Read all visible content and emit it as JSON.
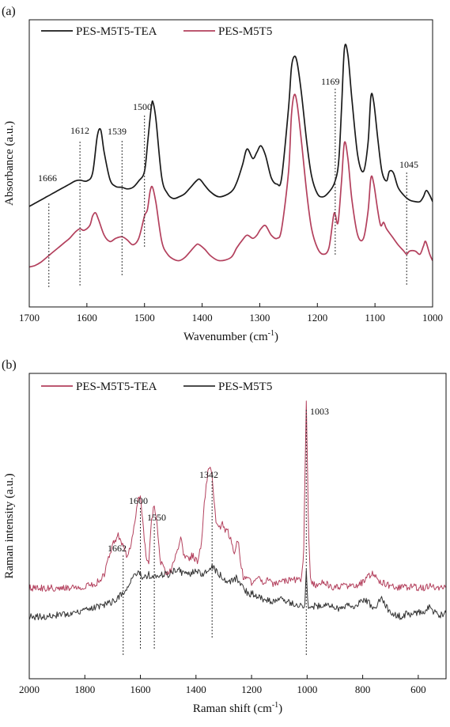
{
  "chart_data": [
    {
      "panel": "(a)",
      "type": "line",
      "xlabel": "Wavenumber (cm",
      "xlabel_sup": "-1",
      "xlabel_end": ")",
      "ylabel": "Absorbance (a.u.)",
      "xlim": [
        1700,
        1000
      ],
      "x_reversed": true,
      "xticks": [
        1700,
        1600,
        1500,
        1400,
        1300,
        1200,
        1100,
        1000
      ],
      "y_ticks_shown": false,
      "legend_position": "top-left",
      "colors": {
        "PES-M5T5-TEA": "#1a1a1a",
        "PES-M5T5": "#b3405d"
      },
      "series": [
        {
          "name": "PES-M5T5-TEA",
          "color": "#1a1a1a",
          "x": [
            1700,
            1690,
            1680,
            1670,
            1660,
            1650,
            1640,
            1630,
            1620,
            1612,
            1600,
            1590,
            1582,
            1576,
            1570,
            1560,
            1550,
            1539,
            1530,
            1520,
            1510,
            1500,
            1494,
            1488,
            1485,
            1480,
            1470,
            1460,
            1450,
            1440,
            1430,
            1420,
            1410,
            1404,
            1395,
            1385,
            1370,
            1350,
            1340,
            1330,
            1322,
            1312,
            1305,
            1298,
            1290,
            1280,
            1270,
            1262,
            1250,
            1245,
            1240,
            1235,
            1228,
            1218,
            1210,
            1200,
            1190,
            1180,
            1170,
            1163,
            1158,
            1153,
            1147,
            1140,
            1130,
            1120,
            1112,
            1107,
            1102,
            1095,
            1088,
            1080,
            1075,
            1068,
            1060,
            1050,
            1040,
            1030,
            1022,
            1016,
            1011,
            1005,
            1000
          ],
          "y": [
            0.08,
            0.1,
            0.12,
            0.14,
            0.16,
            0.18,
            0.2,
            0.22,
            0.24,
            0.245,
            0.24,
            0.29,
            0.52,
            0.56,
            0.42,
            0.25,
            0.205,
            0.2,
            0.19,
            0.2,
            0.24,
            0.3,
            0.5,
            0.71,
            0.73,
            0.62,
            0.26,
            0.16,
            0.13,
            0.14,
            0.16,
            0.2,
            0.24,
            0.25,
            0.21,
            0.17,
            0.14,
            0.17,
            0.23,
            0.34,
            0.44,
            0.38,
            0.42,
            0.46,
            0.4,
            0.26,
            0.22,
            0.26,
            0.7,
            0.95,
            1.02,
            0.98,
            0.8,
            0.47,
            0.27,
            0.16,
            0.14,
            0.17,
            0.23,
            0.36,
            0.7,
            1.07,
            1.03,
            0.75,
            0.4,
            0.3,
            0.48,
            0.77,
            0.73,
            0.5,
            0.3,
            0.24,
            0.3,
            0.29,
            0.2,
            0.15,
            0.12,
            0.11,
            0.11,
            0.14,
            0.18,
            0.15,
            0.11
          ]
        },
        {
          "name": "PES-M5T5",
          "color": "#b3405d",
          "x": [
            1700,
            1690,
            1680,
            1670,
            1660,
            1650,
            1640,
            1630,
            1620,
            1612,
            1605,
            1595,
            1590,
            1585,
            1580,
            1570,
            1560,
            1550,
            1539,
            1530,
            1520,
            1510,
            1500,
            1495,
            1490,
            1486,
            1480,
            1470,
            1460,
            1450,
            1440,
            1430,
            1420,
            1410,
            1405,
            1395,
            1385,
            1370,
            1350,
            1340,
            1330,
            1322,
            1312,
            1305,
            1298,
            1290,
            1280,
            1270,
            1262,
            1250,
            1245,
            1240,
            1235,
            1228,
            1218,
            1210,
            1200,
            1190,
            1180,
            1172,
            1169,
            1164,
            1158,
            1153,
            1147,
            1140,
            1130,
            1120,
            1112,
            1107,
            1102,
            1095,
            1090,
            1085,
            1080,
            1070,
            1060,
            1050,
            1045,
            1040,
            1030,
            1022,
            1016,
            1012,
            1005,
            1000
          ],
          "y": [
            -0.3,
            -0.29,
            -0.27,
            -0.24,
            -0.21,
            -0.18,
            -0.15,
            -0.12,
            -0.08,
            -0.06,
            -0.07,
            -0.04,
            0.02,
            0.04,
            0.0,
            -0.1,
            -0.14,
            -0.12,
            -0.11,
            -0.13,
            -0.16,
            -0.12,
            0.02,
            0.06,
            0.18,
            0.2,
            0.1,
            -0.14,
            -0.22,
            -0.25,
            -0.26,
            -0.24,
            -0.2,
            -0.16,
            -0.16,
            -0.19,
            -0.23,
            -0.26,
            -0.24,
            -0.18,
            -0.13,
            -0.1,
            -0.12,
            -0.1,
            -0.06,
            -0.04,
            -0.1,
            -0.12,
            -0.06,
            0.3,
            0.65,
            0.78,
            0.72,
            0.5,
            0.15,
            -0.06,
            -0.18,
            -0.22,
            -0.18,
            0.02,
            0.03,
            -0.02,
            0.24,
            0.48,
            0.38,
            0.12,
            -0.1,
            -0.12,
            0.05,
            0.26,
            0.22,
            0.05,
            -0.04,
            -0.02,
            -0.06,
            -0.11,
            -0.16,
            -0.2,
            -0.22,
            -0.2,
            -0.2,
            -0.22,
            -0.17,
            -0.14,
            -0.22,
            -0.26
          ]
        }
      ],
      "annotations": [
        {
          "label": "1666",
          "x": 1666
        },
        {
          "label": "1612",
          "x": 1612
        },
        {
          "label": "1539",
          "x": 1539
        },
        {
          "label": "1500",
          "x": 1500
        },
        {
          "label": "1169",
          "x": 1169
        },
        {
          "label": "1045",
          "x": 1045
        }
      ]
    },
    {
      "panel": "(b)",
      "type": "line",
      "xlabel": "Raman shift (cm",
      "xlabel_sup": "-1",
      "xlabel_end": ")",
      "ylabel": "Raman intensity (a.u.)",
      "xlim": [
        2000,
        500
      ],
      "x_reversed": true,
      "xticks": [
        2000,
        1800,
        1600,
        1400,
        1200,
        1000,
        800,
        600
      ],
      "y_ticks_shown": false,
      "legend_position": "top-left",
      "colors": {
        "PES-M5T5-TEA": "#b3405d",
        "PES-M5T5": "#333333"
      },
      "series": [
        {
          "name": "PES-M5T5-TEA",
          "color": "#b3405d",
          "x": [
            2000,
            1950,
            1900,
            1850,
            1800,
            1760,
            1730,
            1700,
            1680,
            1670,
            1662,
            1650,
            1640,
            1630,
            1620,
            1610,
            1600,
            1592,
            1580,
            1570,
            1560,
            1550,
            1540,
            1530,
            1520,
            1510,
            1500,
            1490,
            1480,
            1470,
            1460,
            1455,
            1445,
            1430,
            1410,
            1395,
            1380,
            1370,
            1360,
            1352,
            1342,
            1335,
            1328,
            1315,
            1305,
            1295,
            1285,
            1275,
            1262,
            1250,
            1240,
            1230,
            1215,
            1200,
            1180,
            1160,
            1140,
            1120,
            1100,
            1080,
            1060,
            1040,
            1020,
            1012,
            1008,
            1003,
            998,
            994,
            988,
            980,
            960,
            940,
            920,
            900,
            880,
            860,
            840,
            820,
            800,
            780,
            765,
            750,
            740,
            720,
            700,
            680,
            660,
            640,
            620,
            600,
            580,
            560,
            540,
            520,
            500
          ],
          "y": [
            0.05,
            0.05,
            0.05,
            0.05,
            0.06,
            0.07,
            0.12,
            0.28,
            0.32,
            0.3,
            0.26,
            0.22,
            0.24,
            0.3,
            0.4,
            0.5,
            0.52,
            0.4,
            0.22,
            0.18,
            0.4,
            0.48,
            0.38,
            0.2,
            0.16,
            0.14,
            0.12,
            0.14,
            0.18,
            0.22,
            0.28,
            0.32,
            0.22,
            0.2,
            0.22,
            0.18,
            0.28,
            0.48,
            0.62,
            0.68,
            0.62,
            0.5,
            0.4,
            0.36,
            0.38,
            0.34,
            0.34,
            0.3,
            0.24,
            0.3,
            0.2,
            0.1,
            0.09,
            0.08,
            0.1,
            0.08,
            0.09,
            0.07,
            0.08,
            0.09,
            0.09,
            0.09,
            0.1,
            0.25,
            0.6,
            1.0,
            0.62,
            0.3,
            0.1,
            0.07,
            0.06,
            0.08,
            0.06,
            0.05,
            0.06,
            0.06,
            0.06,
            0.06,
            0.08,
            0.11,
            0.12,
            0.1,
            0.08,
            0.07,
            0.06,
            0.05,
            0.06,
            0.05,
            0.06,
            0.05,
            0.05,
            0.06,
            0.05,
            0.05,
            0.05
          ]
        },
        {
          "name": "PES-M5T5",
          "color": "#333333",
          "x": [
            2000,
            1950,
            1900,
            1850,
            1800,
            1760,
            1730,
            1700,
            1680,
            1662,
            1650,
            1630,
            1615,
            1605,
            1600,
            1590,
            1580,
            1570,
            1560,
            1550,
            1540,
            1530,
            1520,
            1500,
            1480,
            1460,
            1440,
            1420,
            1400,
            1380,
            1360,
            1350,
            1342,
            1330,
            1315,
            1300,
            1285,
            1270,
            1255,
            1240,
            1225,
            1210,
            1190,
            1170,
            1150,
            1130,
            1110,
            1090,
            1070,
            1050,
            1030,
            1015,
            1008,
            1003,
            998,
            992,
            985,
            970,
            950,
            930,
            910,
            890,
            870,
            850,
            830,
            810,
            790,
            770,
            755,
            745,
            735,
            720,
            700,
            680,
            660,
            640,
            620,
            600,
            580,
            560,
            540,
            520,
            500
          ],
          "y": [
            -0.1,
            -0.1,
            -0.09,
            -0.08,
            -0.07,
            -0.05,
            -0.04,
            -0.02,
            0.0,
            0.03,
            0.05,
            0.1,
            0.12,
            0.14,
            0.13,
            0.1,
            0.11,
            0.12,
            0.1,
            0.11,
            0.1,
            0.11,
            0.12,
            0.12,
            0.14,
            0.14,
            0.12,
            0.12,
            0.14,
            0.12,
            0.13,
            0.15,
            0.16,
            0.14,
            0.12,
            0.1,
            0.08,
            0.09,
            0.1,
            0.07,
            0.04,
            0.02,
            0.02,
            0.0,
            -0.01,
            -0.02,
            -0.01,
            0.0,
            -0.02,
            -0.03,
            -0.04,
            -0.05,
            -0.02,
            0.15,
            -0.02,
            -0.06,
            -0.05,
            -0.04,
            -0.05,
            -0.03,
            -0.05,
            -0.06,
            -0.05,
            -0.03,
            -0.05,
            -0.02,
            -0.01,
            -0.04,
            -0.06,
            -0.03,
            0.0,
            -0.04,
            -0.08,
            -0.09,
            -0.1,
            -0.08,
            -0.09,
            -0.07,
            -0.08,
            -0.05,
            -0.08,
            -0.09,
            -0.08
          ]
        }
      ],
      "annotations": [
        {
          "label": "1662",
          "x": 1662
        },
        {
          "label": "1600",
          "x": 1600
        },
        {
          "label": "1550",
          "x": 1550
        },
        {
          "label": "1342",
          "x": 1342
        },
        {
          "label": "1003",
          "x": 1003
        }
      ]
    }
  ]
}
